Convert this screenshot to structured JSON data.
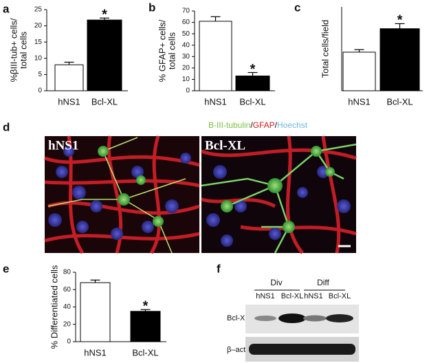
{
  "chart_data": [
    {
      "type": "bar",
      "panel": "a",
      "y_label": [
        "%βIII-tub+ cells/",
        "total cells"
      ],
      "categories": [
        "hNS1",
        "Bcl-XL"
      ],
      "values": [
        8,
        21.8
      ],
      "errors": [
        0.8,
        0.6
      ],
      "colors": [
        "#ffffff",
        "#000000"
      ],
      "ylim": [
        0,
        25
      ],
      "yticks": [
        0,
        5,
        10,
        15,
        20,
        25
      ],
      "annotation": "*"
    },
    {
      "type": "bar",
      "panel": "b",
      "y_label": [
        "% GFAP+ cells/",
        "total cells"
      ],
      "categories": [
        "hNS1",
        "Bcl-XL"
      ],
      "values": [
        61,
        13
      ],
      "errors": [
        4,
        3
      ],
      "colors": [
        "#ffffff",
        "#000000"
      ],
      "ylim": [
        0,
        70
      ],
      "yticks": [
        0,
        10,
        20,
        30,
        40,
        50,
        60,
        70
      ],
      "annotation": "*"
    },
    {
      "type": "bar",
      "panel": "c",
      "y_label": [
        "Total cells/field"
      ],
      "categories": [
        "hNS1",
        "Bcl-XL"
      ],
      "values": [
        92,
        148
      ],
      "errors": [
        6,
        12
      ],
      "colors": [
        "#ffffff",
        "#000000"
      ],
      "ylim": [
        0,
        200
      ],
      "annotation": "*"
    },
    {
      "type": "bar",
      "panel": "e",
      "y_label": [
        "% Differentiated cells"
      ],
      "categories": [
        "hNS1",
        "Bcl-XL"
      ],
      "values": [
        68,
        35
      ],
      "errors": [
        3,
        2
      ],
      "colors": [
        "#ffffff",
        "#000000"
      ],
      "ylim": [
        0,
        80
      ],
      "yticks": [
        0,
        20,
        40,
        60,
        80
      ],
      "annotation": "*"
    }
  ],
  "panel_d": {
    "label": "d",
    "title": [
      {
        "text": "B-III-tubulin",
        "color": "#7ac143"
      },
      {
        "text": "/",
        "color": "#000000"
      },
      {
        "text": "GFAP",
        "color": "#d7191c"
      },
      {
        "text": "/",
        "color": "#000000"
      },
      {
        "text": "Hoechst",
        "color": "#6fb7e0"
      }
    ],
    "images": [
      "hNS1",
      "Bcl-XL"
    ]
  },
  "panel_f": {
    "label": "f",
    "groups": [
      "Div",
      "Diff"
    ],
    "lanes": [
      "hNS1",
      "Bcl-XL",
      "hNS1",
      "Bcl-XL"
    ],
    "rows": [
      "Bcl-XL",
      "β–actin"
    ]
  }
}
